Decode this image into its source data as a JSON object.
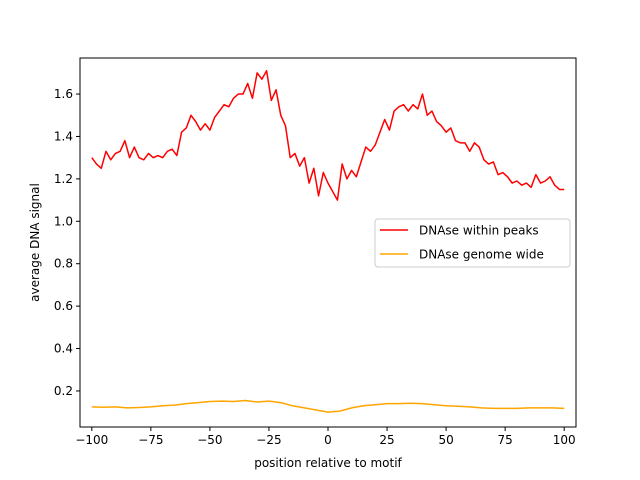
{
  "chart_data": {
    "type": "line",
    "title": "",
    "xlabel": "position relative to motif",
    "ylabel": "average DNA signal",
    "xlim": [
      -105,
      105
    ],
    "ylim": [
      0.03,
      1.77
    ],
    "xticks": [
      -100,
      -75,
      -50,
      -25,
      0,
      25,
      50,
      75,
      100
    ],
    "xtick_labels": [
      "−100",
      "−75",
      "−50",
      "−25",
      "0",
      "25",
      "50",
      "75",
      "100"
    ],
    "yticks": [
      0.2,
      0.4,
      0.6,
      0.8,
      1.0,
      1.2,
      1.4,
      1.6
    ],
    "ytick_labels": [
      "0.2",
      "0.4",
      "0.6",
      "0.8",
      "1.0",
      "1.2",
      "1.4",
      "1.6"
    ],
    "grid": false,
    "legend_position": "center-right",
    "series": [
      {
        "name": "DNAse within peaks",
        "color": "#ff0000",
        "x": [
          -100,
          -98,
          -96,
          -94,
          -92,
          -90,
          -88,
          -86,
          -84,
          -82,
          -80,
          -78,
          -76,
          -74,
          -72,
          -70,
          -68,
          -66,
          -64,
          -62,
          -60,
          -58,
          -56,
          -54,
          -52,
          -50,
          -48,
          -46,
          -44,
          -42,
          -40,
          -38,
          -36,
          -34,
          -32,
          -30,
          -28,
          -26,
          -24,
          -22,
          -20,
          -18,
          -16,
          -14,
          -12,
          -10,
          -8,
          -6,
          -4,
          -2,
          0,
          2,
          4,
          6,
          8,
          10,
          12,
          14,
          16,
          18,
          20,
          22,
          24,
          26,
          28,
          30,
          32,
          34,
          36,
          38,
          40,
          42,
          44,
          46,
          48,
          50,
          52,
          54,
          56,
          58,
          60,
          62,
          64,
          66,
          68,
          70,
          72,
          74,
          76,
          78,
          80,
          82,
          84,
          86,
          88,
          90,
          92,
          94,
          96,
          98,
          100
        ],
        "y": [
          1.3,
          1.27,
          1.25,
          1.33,
          1.29,
          1.32,
          1.33,
          1.38,
          1.3,
          1.35,
          1.3,
          1.29,
          1.32,
          1.3,
          1.31,
          1.3,
          1.33,
          1.34,
          1.31,
          1.42,
          1.44,
          1.5,
          1.47,
          1.43,
          1.46,
          1.43,
          1.49,
          1.52,
          1.55,
          1.54,
          1.58,
          1.6,
          1.6,
          1.65,
          1.58,
          1.7,
          1.67,
          1.71,
          1.57,
          1.62,
          1.5,
          1.45,
          1.3,
          1.32,
          1.26,
          1.3,
          1.18,
          1.25,
          1.12,
          1.23,
          1.18,
          1.14,
          1.1,
          1.27,
          1.2,
          1.24,
          1.21,
          1.28,
          1.35,
          1.33,
          1.36,
          1.42,
          1.48,
          1.43,
          1.52,
          1.54,
          1.55,
          1.52,
          1.55,
          1.53,
          1.6,
          1.5,
          1.52,
          1.47,
          1.45,
          1.42,
          1.44,
          1.38,
          1.37,
          1.37,
          1.33,
          1.37,
          1.35,
          1.29,
          1.27,
          1.28,
          1.22,
          1.23,
          1.21,
          1.18,
          1.19,
          1.17,
          1.18,
          1.16,
          1.22,
          1.18,
          1.19,
          1.21,
          1.17,
          1.15,
          1.15
        ]
      },
      {
        "name": "DNAse genome wide",
        "color": "#ffa500",
        "x": [
          -100,
          -95,
          -90,
          -85,
          -80,
          -75,
          -70,
          -65,
          -60,
          -55,
          -50,
          -45,
          -40,
          -35,
          -30,
          -25,
          -20,
          -15,
          -10,
          -5,
          0,
          5,
          10,
          15,
          20,
          25,
          30,
          35,
          40,
          45,
          50,
          55,
          60,
          65,
          70,
          75,
          80,
          85,
          90,
          95,
          100
        ],
        "y": [
          0.125,
          0.123,
          0.125,
          0.12,
          0.122,
          0.125,
          0.13,
          0.133,
          0.14,
          0.145,
          0.15,
          0.152,
          0.15,
          0.155,
          0.148,
          0.152,
          0.145,
          0.13,
          0.12,
          0.11,
          0.1,
          0.105,
          0.12,
          0.13,
          0.135,
          0.14,
          0.14,
          0.142,
          0.14,
          0.135,
          0.13,
          0.128,
          0.125,
          0.12,
          0.118,
          0.118,
          0.118,
          0.12,
          0.12,
          0.12,
          0.118
        ]
      }
    ]
  }
}
